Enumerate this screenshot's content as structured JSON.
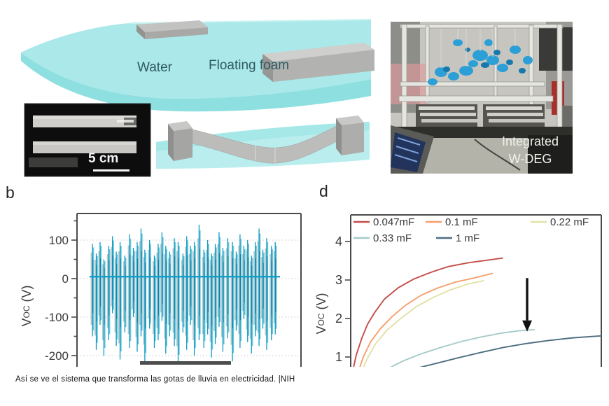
{
  "panel_a": {
    "water_label": "Water",
    "floating_foam_label": "Floating foam",
    "scale_bar": "5 cm"
  },
  "photo": {
    "label_line1": "Integrated",
    "label_line2": "W-DEG"
  },
  "panel_letters": {
    "b": "b",
    "d": "d"
  },
  "caption": "Así se ve el sistema que transforma las gotas de lluvia en electricidad. |NIH",
  "colors": {
    "water_top": "#abe8e9",
    "water_front": "#8edfe0",
    "foam_gray": "#b2b2b0",
    "axis": "#4a4a4a"
  },
  "chart_data": [
    {
      "id": "b",
      "type": "line",
      "title": "",
      "ylabel": "V_OC (V)",
      "ylabel_parts": {
        "base": "V",
        "sub": "OC",
        "unit": "(V)"
      },
      "yticks": [
        100,
        0,
        -100,
        -200
      ],
      "minor_yticks": [
        150,
        50,
        -50,
        -150
      ],
      "ylim_visible": [
        -230,
        170
      ],
      "grid": "dotted horizontal",
      "baseline_v": 5,
      "signal_colors": {
        "main": "#0d9cc4",
        "light": "#6ec6d8",
        "faint": "#a9bec5",
        "deep": "#0b7fa3"
      },
      "spikes": [
        [
          0.015,
          90,
          -150
        ],
        [
          0.035,
          65,
          -185
        ],
        [
          0.055,
          95,
          -120
        ],
        [
          0.075,
          50,
          -200
        ],
        [
          0.1,
          85,
          -160
        ],
        [
          0.12,
          110,
          -90
        ],
        [
          0.14,
          70,
          -175
        ],
        [
          0.16,
          95,
          -210
        ],
        [
          0.185,
          60,
          -140
        ],
        [
          0.21,
          115,
          -180
        ],
        [
          0.23,
          80,
          -100
        ],
        [
          0.25,
          95,
          -190
        ],
        [
          0.27,
          130,
          -150
        ],
        [
          0.29,
          75,
          -215
        ],
        [
          0.315,
          100,
          -130
        ],
        [
          0.34,
          60,
          -180
        ],
        [
          0.36,
          90,
          -160
        ],
        [
          0.38,
          120,
          -110
        ],
        [
          0.4,
          85,
          -195
        ],
        [
          0.42,
          70,
          -150
        ],
        [
          0.445,
          105,
          -175
        ],
        [
          0.465,
          95,
          -220
        ],
        [
          0.49,
          65,
          -140
        ],
        [
          0.51,
          110,
          -185
        ],
        [
          0.53,
          85,
          -120
        ],
        [
          0.55,
          95,
          -200
        ],
        [
          0.575,
          140,
          -160
        ],
        [
          0.6,
          75,
          -180
        ],
        [
          0.62,
          100,
          -145
        ],
        [
          0.64,
          65,
          -205
        ],
        [
          0.66,
          90,
          -170
        ],
        [
          0.68,
          120,
          -125
        ],
        [
          0.7,
          80,
          -190
        ],
        [
          0.725,
          105,
          -155
        ],
        [
          0.75,
          95,
          -215
        ],
        [
          0.77,
          70,
          -135
        ],
        [
          0.79,
          115,
          -180
        ],
        [
          0.81,
          85,
          -105
        ],
        [
          0.83,
          100,
          -165
        ],
        [
          0.85,
          60,
          -195
        ],
        [
          0.87,
          95,
          -150
        ],
        [
          0.89,
          130,
          -175
        ],
        [
          0.91,
          75,
          -130
        ],
        [
          0.93,
          105,
          -185
        ],
        [
          0.955,
          85,
          -160
        ],
        [
          0.975,
          95,
          -145
        ]
      ]
    },
    {
      "id": "d",
      "type": "line",
      "title": "",
      "ylabel": "V_OC (V)",
      "ylabel_parts": {
        "base": "V",
        "sub": "OC",
        "unit": "(V)"
      },
      "yticks": [
        4,
        3,
        2,
        1
      ],
      "ylim_visible": [
        0.8,
        4.4
      ],
      "grid": "off",
      "legend_position": "top inside, two rows",
      "legend": [
        {
          "label": "0.047mF",
          "color": "#c44d4a"
        },
        {
          "label": "0.1 mF",
          "color": "#f4a06c"
        },
        {
          "label": "0.22 mF",
          "color": "#e3e1a6"
        },
        {
          "label": "0.33 mF",
          "color": "#a5cbca"
        },
        {
          "label": "1 mF",
          "color": "#4e6e80"
        }
      ],
      "series": [
        {
          "name": "0.047mF",
          "color": "#c44d4a",
          "points": [
            [
              0.011,
              0.72
            ],
            [
              0.022,
              1.05
            ],
            [
              0.045,
              1.5
            ],
            [
              0.067,
              1.85
            ],
            [
              0.095,
              2.15
            ],
            [
              0.134,
              2.5
            ],
            [
              0.19,
              2.8
            ],
            [
              0.25,
              3.02
            ],
            [
              0.32,
              3.2
            ],
            [
              0.39,
              3.35
            ],
            [
              0.47,
              3.45
            ],
            [
              0.55,
              3.52
            ],
            [
              0.606,
              3.57
            ]
          ]
        },
        {
          "name": "0.1 mF",
          "color": "#f4a06c",
          "points": [
            [
              0.03,
              0.6
            ],
            [
              0.05,
              1.0
            ],
            [
              0.08,
              1.4
            ],
            [
              0.12,
              1.75
            ],
            [
              0.165,
              2.05
            ],
            [
              0.22,
              2.35
            ],
            [
              0.28,
              2.6
            ],
            [
              0.35,
              2.8
            ],
            [
              0.42,
              2.95
            ],
            [
              0.49,
              3.05
            ],
            [
              0.565,
              3.17
            ]
          ]
        },
        {
          "name": "0.22 mF",
          "color": "#e3e1a6",
          "points": [
            [
              0.04,
              0.55
            ],
            [
              0.065,
              0.95
            ],
            [
              0.1,
              1.35
            ],
            [
              0.145,
              1.7
            ],
            [
              0.2,
              2.0
            ],
            [
              0.26,
              2.3
            ],
            [
              0.33,
              2.55
            ],
            [
              0.4,
              2.75
            ],
            [
              0.47,
              2.9
            ],
            [
              0.53,
              2.98
            ]
          ]
        },
        {
          "name": "0.33 mF",
          "color": "#a5cbca",
          "points": [
            [
              0.155,
              0.72
            ],
            [
              0.21,
              0.9
            ],
            [
              0.28,
              1.08
            ],
            [
              0.36,
              1.25
            ],
            [
              0.44,
              1.4
            ],
            [
              0.52,
              1.52
            ],
            [
              0.6,
              1.62
            ],
            [
              0.67,
              1.68
            ],
            [
              0.732,
              1.71
            ]
          ]
        },
        {
          "name": "1 mF",
          "color": "#4e6e80",
          "points": [
            [
              0.27,
              0.72
            ],
            [
              0.35,
              0.85
            ],
            [
              0.43,
              0.98
            ],
            [
              0.52,
              1.12
            ],
            [
              0.61,
              1.25
            ],
            [
              0.7,
              1.35
            ],
            [
              0.79,
              1.43
            ],
            [
              0.89,
              1.5
            ],
            [
              1.0,
              1.55
            ]
          ]
        }
      ],
      "annotation_arrow": {
        "x_frac": 0.704,
        "v_from": 3.05,
        "v_to": 1.95,
        "color": "#111111",
        "points_at": "0.33 mF curve end"
      }
    }
  ]
}
